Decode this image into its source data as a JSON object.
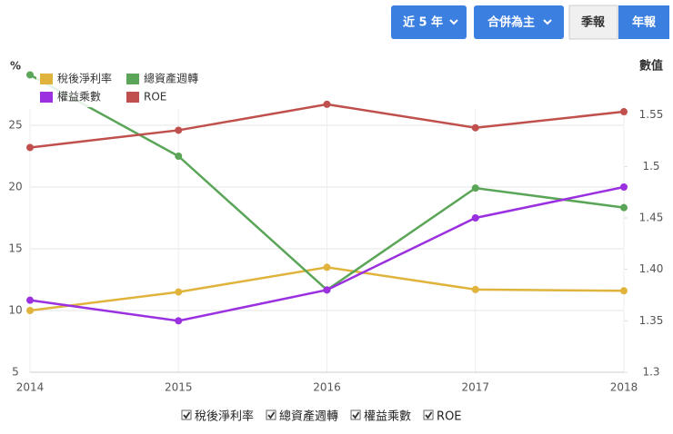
{
  "controls": {
    "period": "近 5 年",
    "scope": "合併為主",
    "quarterly": "季報",
    "annual": "年報"
  },
  "chart_data": {
    "type": "line",
    "ylabel": "%",
    "y2label": "數值",
    "categories": [
      "2014",
      "2015",
      "2016",
      "2017",
      "2018"
    ],
    "series": [
      {
        "name": "稅後淨利率",
        "color": "#e0b43c",
        "values": [
          10.0,
          11.5,
          13.5,
          11.7,
          11.6
        ]
      },
      {
        "name": "總資產週轉",
        "color": "#5aa557",
        "axis": "y2",
        "values": [
          1.589,
          1.51,
          1.38,
          1.479,
          1.46
        ]
      },
      {
        "name": "權益乘數",
        "color": "#9b30e0",
        "axis": "y2",
        "values": [
          1.37,
          1.35,
          1.38,
          1.45,
          1.48
        ]
      },
      {
        "name": "ROE",
        "color": "#c0504d",
        "values": [
          23.2,
          24.6,
          26.7,
          24.8,
          26.1
        ]
      }
    ],
    "ylim": [
      5,
      30
    ],
    "yticks": [
      5,
      10,
      15,
      20,
      25
    ],
    "y2lim": [
      1.3,
      1.6
    ],
    "y2ticks": [
      1.3,
      1.35,
      {
        "value": 1.4,
        "label": "1.40"
      },
      1.45,
      1.5,
      1.55
    ],
    "grid": true
  }
}
